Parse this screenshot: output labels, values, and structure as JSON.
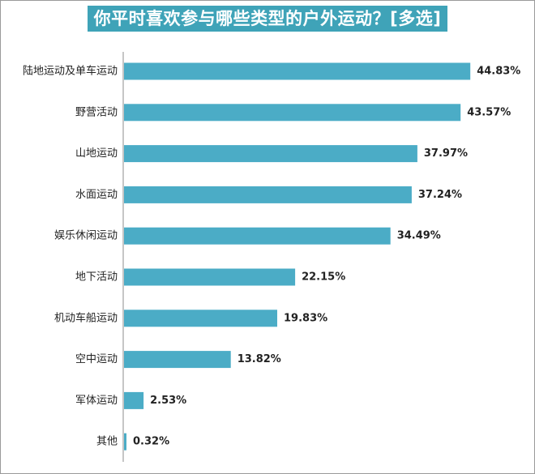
{
  "title": "你平时喜欢参与哪些类型的户外运动？[多选]",
  "colors": {
    "bar": "#4bacc6",
    "title_bg": "#3fa3b8",
    "axis": "#8c8c8c"
  },
  "chart_data": {
    "type": "bar",
    "orientation": "horizontal",
    "title": "你平时喜欢参与哪些类型的户外运动？[多选]",
    "categories": [
      "陆地运动及单车运动",
      "野营活动",
      "山地运动",
      "水面运动",
      "娱乐休闲运动",
      "地下活动",
      "机动车船运动",
      "空中运动",
      "军体运动",
      "其他"
    ],
    "values": [
      44.83,
      43.57,
      37.97,
      37.24,
      34.49,
      22.15,
      19.83,
      13.82,
      2.53,
      0.32
    ],
    "value_labels": [
      "44.83%",
      "43.57%",
      "37.97%",
      "37.24%",
      "34.49%",
      "22.15%",
      "19.83%",
      "13.82%",
      "2.53%",
      "0.32%"
    ],
    "unit": "%",
    "xlim": [
      0,
      50
    ],
    "grid": false,
    "legend": "none"
  }
}
